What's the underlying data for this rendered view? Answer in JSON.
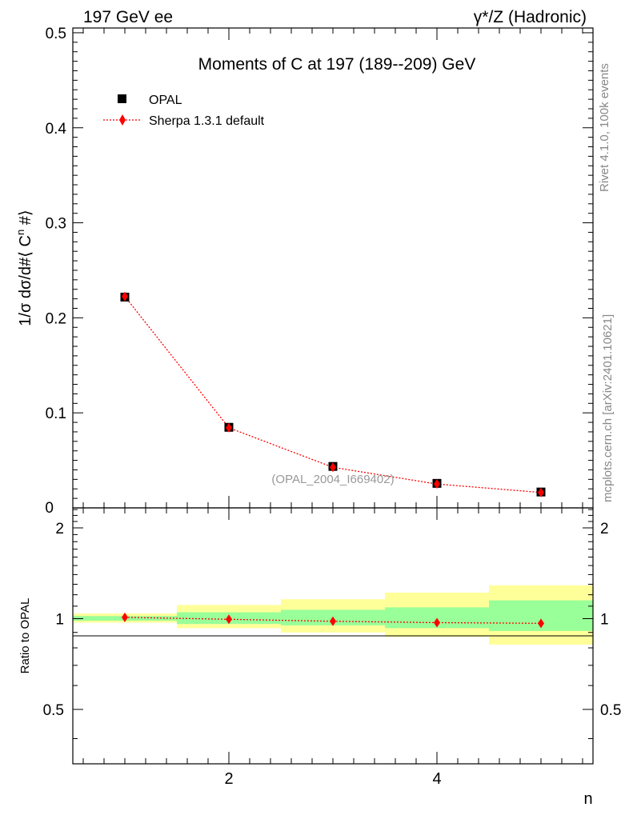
{
  "header": {
    "left": "197 GeV ee",
    "right": "γ*/Z (Hadronic)"
  },
  "side_labels": {
    "rivet": "Rivet 4.1.0,  100k events",
    "mcplots": "mcplots.cern.ch [arXiv:2401.10621]"
  },
  "colors": {
    "data": "#000000",
    "mc": "#ff0000",
    "band_inner": "#99ff99",
    "band_outer": "#ffff99"
  },
  "chart_data": [
    {
      "type": "scatter",
      "panel": "main",
      "title": "Moments of C at 197 (189--209) GeV",
      "ylabel_prefix": "1/σ  dσ/d#⟨ C",
      "ylabel_sup": "n",
      "ylabel_suffix": " #⟩",
      "xlabel": "",
      "xlim": [
        0.5,
        5.5
      ],
      "ylim": [
        0,
        0.505
      ],
      "yticks": [
        0.1,
        0.2,
        0.3,
        0.4,
        0.5
      ],
      "ytick_labels": [
        "0.1",
        "0.2",
        "0.3",
        "0.4",
        "0.5"
      ],
      "y0_label": "0",
      "legend_position": "top-left",
      "analysis_label": "(OPAL_2004_I669402)",
      "series": [
        {
          "name": "OPAL",
          "marker": "square",
          "x": [
            1,
            2,
            3,
            4,
            5
          ],
          "values": [
            0.2218,
            0.0848,
            0.0436,
            0.0258,
            0.0167
          ],
          "errors": [
            0.0035,
            0.0022,
            0.0015,
            0.0011,
            0.0008
          ]
        },
        {
          "name": "Sherpa 1.3.1 default",
          "marker": "diamond",
          "line": "dotted",
          "x": [
            1,
            2,
            3,
            4,
            5
          ],
          "values": [
            0.2225,
            0.0843,
            0.0427,
            0.0251,
            0.0162
          ]
        }
      ]
    },
    {
      "type": "line",
      "panel": "ratio",
      "ylabel": "Ratio to OPAL",
      "xlabel": "n",
      "xlim": [
        0.5,
        5.5
      ],
      "ylim": [
        0.33,
        2.33
      ],
      "yticks": [
        0.5,
        1,
        2
      ],
      "ytick_labels": [
        "0.5",
        "1",
        "2"
      ],
      "xticks": [
        2,
        4
      ],
      "xtick_labels": [
        "2",
        "4"
      ],
      "bands": [
        {
          "x_from": 0.5,
          "x_to": 1.5,
          "inner": [
            0.985,
            1.02
          ],
          "outer": [
            0.97,
            1.04
          ]
        },
        {
          "x_from": 1.5,
          "x_to": 2.5,
          "inner": [
            0.96,
            1.05
          ],
          "outer": [
            0.93,
            1.11
          ]
        },
        {
          "x_from": 2.5,
          "x_to": 3.5,
          "inner": [
            0.95,
            1.07
          ],
          "outer": [
            0.9,
            1.16
          ]
        },
        {
          "x_from": 3.5,
          "x_to": 4.5,
          "inner": [
            0.93,
            1.09
          ],
          "outer": [
            0.87,
            1.22
          ]
        },
        {
          "x_from": 4.5,
          "x_to": 5.5,
          "inner": [
            0.91,
            1.15
          ],
          "outer": [
            0.82,
            1.29
          ]
        }
      ],
      "series": [
        {
          "name": "Sherpa 1.3.1 default / OPAL",
          "marker": "diamond",
          "line": "dotted",
          "x": [
            1,
            2,
            3,
            4,
            5
          ],
          "values": [
            1.01,
            0.995,
            0.98,
            0.97,
            0.965
          ]
        }
      ]
    }
  ]
}
